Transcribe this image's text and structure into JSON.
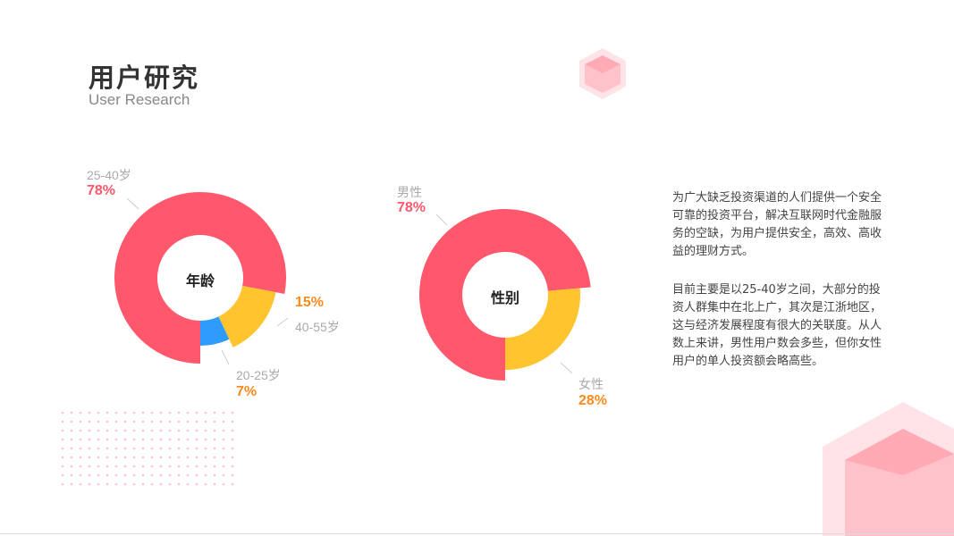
{
  "header": {
    "title": "用户研究",
    "subtitle": "User Research"
  },
  "colors": {
    "red": "#FF586C",
    "yellow": "#FFC42E",
    "blue": "#2E9BFF",
    "orange": "#FF8A1E",
    "pink": "#FFC2CA"
  },
  "paragraphs": [
    "为广大缺乏投资渠道的人们提供一个安全可靠的投资平台，解决互联网时代金融服务的空缺，为用户提供安全，高效、高收益的理财方式。",
    "目前主要是以25-40岁之间，大部分的投资人群集中在北上广，其次是江浙地区，这与经济发展程度有很大的关联度。从人数上来讲，男性用户数会多些，但你女性用户的单人投资额会略高些。"
  ],
  "chart_data": [
    {
      "type": "pie",
      "title": "年龄",
      "categories": [
        "25-40岁",
        "40-55岁",
        "20-25岁"
      ],
      "values": [
        78,
        15,
        7
      ],
      "labels": [
        "78%",
        "15%",
        "7%"
      ],
      "colors": [
        "#FF586C",
        "#FFC42E",
        "#2E9BFF"
      ]
    },
    {
      "type": "pie",
      "title": "性别",
      "categories": [
        "男性",
        "女性"
      ],
      "values": [
        78,
        28
      ],
      "labels": [
        "78%",
        "28%"
      ],
      "colors": [
        "#FF586C",
        "#FFC42E"
      ]
    }
  ]
}
